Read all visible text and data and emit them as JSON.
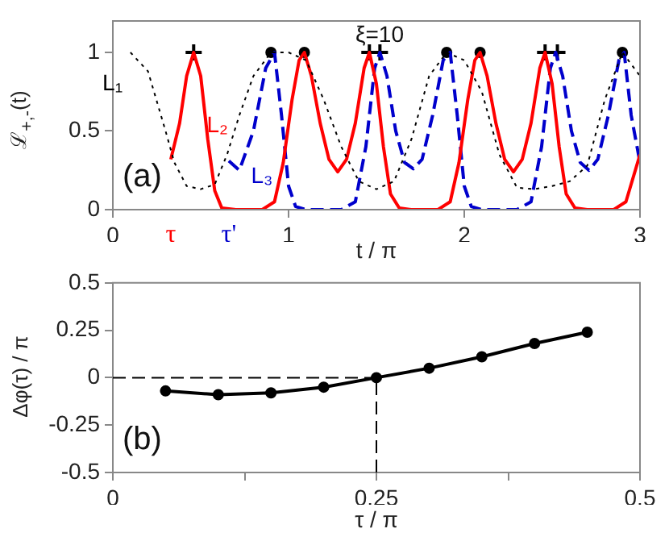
{
  "chart_data": [
    {
      "type": "line",
      "xlabel": "t / π",
      "ylabel": "ℒ$_{+,-}$(t)",
      "xlim": [
        0,
        3
      ],
      "ylim": [
        0,
        1.2
      ],
      "xticks": [
        0,
        1,
        2,
        3
      ],
      "yticks": [
        0,
        0.5,
        1
      ],
      "grid": false,
      "legend": false,
      "marker": "none",
      "annotations": [
        "ξ=10",
        "(a)",
        "τ",
        "τ'"
      ],
      "series": [
        {
          "name": "L₁",
          "color": "#000000",
          "line_style": "dotted",
          "x": [
            0.1,
            0.2,
            0.3,
            0.35,
            0.42,
            0.5,
            0.58,
            0.65,
            0.72,
            0.8,
            0.9,
            1.0,
            1.1,
            1.2,
            1.3,
            1.4,
            1.5,
            1.6,
            1.7,
            1.8,
            1.9,
            2.0,
            2.1,
            2.2,
            2.3,
            2.4,
            2.5,
            2.6,
            2.7,
            2.8,
            2.9,
            3.0
          ],
          "values": [
            1,
            0.88,
            0.5,
            0.3,
            0.15,
            0.13,
            0.16,
            0.35,
            0.6,
            0.85,
            1,
            1,
            0.95,
            0.7,
            0.4,
            0.18,
            0.13,
            0.18,
            0.45,
            0.85,
            1,
            0.95,
            0.75,
            0.35,
            0.14,
            0.13,
            0.15,
            0.18,
            0.28,
            0.7,
            1,
            0.85
          ]
        },
        {
          "name": "L₂",
          "color": "#ff0000",
          "line_style": "solid",
          "x": [
            0.33,
            0.38,
            0.42,
            0.46,
            0.5,
            0.54,
            0.58,
            0.62,
            0.7,
            0.85,
            0.92,
            0.97,
            1.02,
            1.06,
            1.09,
            1.13,
            1.18,
            1.23,
            1.28,
            1.33,
            1.38,
            1.43,
            1.46,
            1.5,
            1.54,
            1.58,
            1.63,
            1.7,
            1.85,
            1.92,
            1.97,
            2.02,
            2.06,
            2.09,
            2.13,
            2.18,
            2.23,
            2.28,
            2.33,
            2.38,
            2.43,
            2.46,
            2.5,
            2.54,
            2.58,
            2.63,
            2.7,
            2.85,
            2.92,
            3.0
          ],
          "values": [
            0.32,
            0.55,
            0.85,
            1,
            0.85,
            0.45,
            0.12,
            0.01,
            0,
            0,
            0.05,
            0.3,
            0.7,
            0.95,
            1,
            0.85,
            0.55,
            0.32,
            0.24,
            0.32,
            0.55,
            0.9,
            1,
            0.8,
            0.4,
            0.1,
            0.01,
            0,
            0,
            0.05,
            0.3,
            0.7,
            0.95,
            1,
            0.85,
            0.55,
            0.32,
            0.24,
            0.32,
            0.55,
            0.9,
            1,
            0.8,
            0.4,
            0.1,
            0.01,
            0,
            0,
            0.05,
            0.35
          ]
        },
        {
          "name": "L₃",
          "color": "#0000cc",
          "line_style": "dashed",
          "x": [
            0.66,
            0.72,
            0.8,
            0.87,
            0.92,
            0.96,
            1.0,
            1.04,
            1.1,
            1.3,
            1.38,
            1.44,
            1.49,
            1.52,
            1.56,
            1.61,
            1.66,
            1.71,
            1.76,
            1.82,
            1.88,
            1.92,
            1.96,
            2.0,
            2.04,
            2.1,
            2.3,
            2.38,
            2.44,
            2.49,
            2.52,
            2.56,
            2.61,
            2.66,
            2.71,
            2.76,
            2.82,
            2.88,
            2.91,
            2.95,
            3.0
          ],
          "values": [
            0.31,
            0.25,
            0.5,
            0.9,
            1,
            0.6,
            0.15,
            0.02,
            0,
            0,
            0.05,
            0.4,
            0.9,
            1,
            0.85,
            0.5,
            0.3,
            0.26,
            0.32,
            0.6,
            0.95,
            1,
            0.6,
            0.15,
            0.02,
            0,
            0,
            0.05,
            0.4,
            0.9,
            1,
            0.85,
            0.5,
            0.3,
            0.25,
            0.32,
            0.6,
            0.95,
            1,
            0.6,
            0.3
          ]
        },
        {
          "type": "scatter",
          "color": "#000000",
          "marker": "cross",
          "x": [
            0.46,
            1.46,
            1.52,
            2.46,
            2.53
          ],
          "values": [
            1,
            1,
            1,
            1,
            1
          ]
        },
        {
          "type": "scatter",
          "color": "#000000",
          "marker": "circle",
          "x": [
            0.9,
            1.09,
            1.9,
            2.09,
            2.9
          ],
          "values": [
            1,
            1,
            1,
            1,
            1
          ]
        }
      ]
    },
    {
      "type": "line",
      "xlabel": "τ / π",
      "ylabel": "Δφ(τ) / π",
      "xlim": [
        0,
        0.5
      ],
      "ylim": [
        -0.5,
        0.5
      ],
      "xticks": [
        0,
        {
          "value": 0.125,
          "label": null
        },
        0.25,
        {
          "value": 0.375,
          "label": null
        },
        0.5
      ],
      "yticks": [
        -0.5,
        -0.25,
        0,
        0.25,
        0.5
      ],
      "grid": false,
      "legend": false,
      "marker": "circle",
      "annotations": [
        "(b)"
      ],
      "ref_lines": [
        {
          "axis": "y",
          "value": 0,
          "line_style": "dashed"
        },
        {
          "axis": "x",
          "value": 0.25,
          "line_style": "dashed"
        }
      ],
      "series": [
        {
          "color": "#000000",
          "x": [
            0.05,
            0.1,
            0.15,
            0.2,
            0.25,
            0.3,
            0.35,
            0.4,
            0.45
          ],
          "values": [
            -0.07,
            -0.09,
            -0.08,
            -0.05,
            0,
            0.05,
            0.11,
            0.18,
            0.24
          ]
        }
      ]
    }
  ]
}
